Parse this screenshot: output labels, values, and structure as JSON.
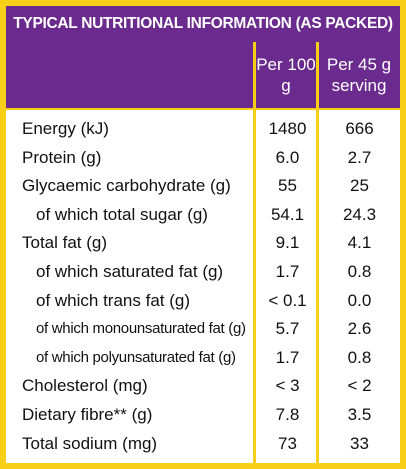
{
  "title": "TYPICAL NUTRITIONAL INFORMATION (AS PACKED)",
  "table": {
    "header": [
      "Per 100 g",
      "Per 45 g serving"
    ],
    "rows": [
      [
        "Energy (kJ)",
        "1480",
        "666"
      ],
      [
        "Protein (g)",
        "6.0",
        "2.7"
      ],
      [
        "Glycaemic carbohydrate (g)",
        "55",
        "25"
      ],
      [
        "of which total sugar (g)",
        "54.1",
        "24.3"
      ],
      [
        "Total fat (g)",
        "9.1",
        "4.1"
      ],
      [
        "of which saturated fat (g)",
        "1.7",
        "0.8"
      ],
      [
        "of which trans fat (g)",
        "< 0.1",
        "0.0"
      ],
      [
        "of which monounsaturated fat (g)",
        "5.7",
        "2.6"
      ],
      [
        "of which polyunsaturated fat (g)",
        "1.7",
        "0.8"
      ],
      [
        "Cholesterol (mg)",
        "< 3",
        "< 2"
      ],
      [
        "Dietary fibre** (g)",
        "7.8",
        "3.5"
      ],
      [
        "Total sodium (mg)",
        "73",
        "33"
      ]
    ]
  }
}
